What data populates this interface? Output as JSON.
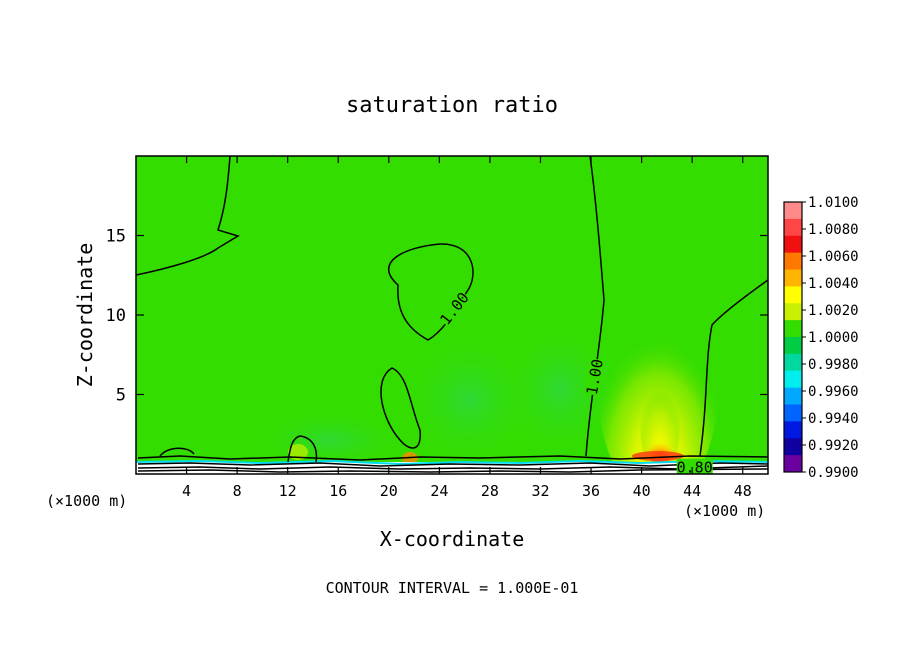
{
  "chart_data": {
    "type": "heatmap",
    "title": "saturation ratio",
    "xlabel": "X-coordinate",
    "ylabel": "Z-coordinate",
    "x_unit_left": "(×1000 m)",
    "x_unit_right": "(×1000 m)",
    "xlim": [
      0,
      50
    ],
    "ylim": [
      0,
      20
    ],
    "x_ticks": [
      4,
      8,
      12,
      16,
      20,
      24,
      28,
      32,
      36,
      40,
      44,
      48
    ],
    "y_ticks": [
      5,
      10,
      15
    ],
    "footer": "CONTOUR INTERVAL = 1.000E-01",
    "contour_labels": [
      {
        "text": "1.00",
        "x": 25.2,
        "z": 10.4,
        "angle": -52
      },
      {
        "text": "1.00",
        "x": 36.3,
        "z": 6.1,
        "angle": -80
      },
      {
        "text": "0.80",
        "x": 44.2,
        "z": 0.4,
        "angle": 0
      }
    ],
    "colorbar": {
      "levels": [
        "1.0100",
        "1.0080",
        "1.0060",
        "1.0040",
        "1.0020",
        "1.0000",
        "0.9980",
        "0.9960",
        "0.9940",
        "0.9920",
        "0.9900"
      ],
      "colors": [
        "#ff8a8a",
        "#ff4646",
        "#f01010",
        "#ff7800",
        "#ffb400",
        "#ffff00",
        "#c8f000",
        "#33dd00",
        "#00cc44",
        "#00d8a0",
        "#00eeee",
        "#00a8ff",
        "#0064ff",
        "#0018e0",
        "#1000a0",
        "#6a00a0"
      ]
    },
    "colors": {
      "background_field": "#33dd00"
    }
  }
}
